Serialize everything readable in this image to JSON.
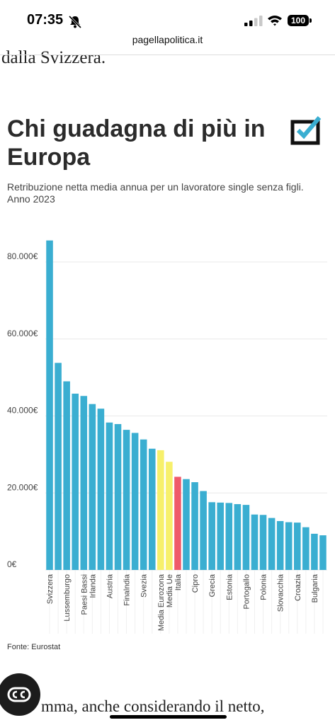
{
  "status": {
    "time": "07:35",
    "battery": "100"
  },
  "browser": {
    "url": "pagellapolitica.it"
  },
  "article": {
    "prev_text": "dalla Svizzera.",
    "next_text": "mma, anche considerando il netto,"
  },
  "chart_data": {
    "type": "bar",
    "title": "Chi guadagna di più in Europa",
    "subtitle": "Retribuzione netta media annua per un lavoratore single senza figli. Anno 2023",
    "source": "Fonte: Eurostat",
    "ylim": [
      0,
      87000
    ],
    "yticks": [
      0,
      20000,
      40000,
      60000,
      80000
    ],
    "ytick_labels": [
      "0€",
      "20.000€",
      "40.000€",
      "60.000€",
      "80.000€"
    ],
    "grid": true,
    "categories": [
      "Svizzera",
      "",
      "Lussemburgo",
      "",
      "Paesi Bassi",
      "Irlanda",
      "",
      "Austria",
      "",
      "Finalndia",
      "",
      "Svezia",
      "",
      "Media Eurozona",
      "Media Ue",
      "Italia",
      "",
      "Cipro",
      "",
      "Grecia",
      "",
      "Estonia",
      "",
      "Portogallo",
      "",
      "Polonia",
      "",
      "Slovacchia",
      "",
      "Croazia",
      "",
      "Bulgaria",
      ""
    ],
    "values": [
      85600,
      53800,
      49000,
      45800,
      45200,
      43100,
      41900,
      38300,
      37900,
      36400,
      35600,
      33900,
      31500,
      31100,
      28100,
      24200,
      23600,
      22800,
      20500,
      17600,
      17500,
      17400,
      17100,
      16900,
      14400,
      14300,
      13500,
      12700,
      12400,
      12300,
      11100,
      9400,
      9000
    ],
    "colors": {
      "default": "#3aaed1",
      "highlight_average": "#f7f06b",
      "highlight_italy": "#ef5a6a",
      "grid": "#e8e8e8",
      "axis_text": "#444444"
    },
    "highlights": {
      "Media Eurozona": "highlight_average",
      "Media Ue": "highlight_average",
      "Italia": "highlight_italy"
    }
  }
}
